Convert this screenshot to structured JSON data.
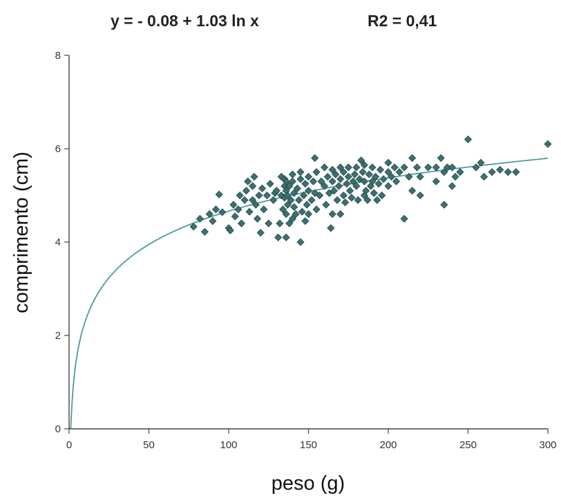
{
  "chart_data": {
    "type": "scatter",
    "title": "y = - 0.08 + 1.03 ln x",
    "subtitle": "R2 = 0,41",
    "xlabel": "peso (g)",
    "ylabel": "comprimento (cm)",
    "xlim": [
      0,
      300
    ],
    "ylim": [
      0,
      8
    ],
    "xticks": [
      "0",
      "50",
      "100",
      "150",
      "200",
      "250",
      "300"
    ],
    "yticks": [
      "0",
      "2",
      "4",
      "6",
      "8"
    ],
    "grid": false,
    "colors": {
      "points": "#3d7070",
      "point_stroke": "#1f4646",
      "curve": "#4e9a9a",
      "axis": "#444444"
    },
    "fit": {
      "a": -0.08,
      "b": 1.03,
      "model": "ln"
    },
    "points": [
      [
        78,
        4.33
      ],
      [
        82,
        4.5
      ],
      [
        85,
        4.22
      ],
      [
        88,
        4.6
      ],
      [
        90,
        4.45
      ],
      [
        92,
        4.7
      ],
      [
        94,
        5.02
      ],
      [
        96,
        4.64
      ],
      [
        100,
        4.3
      ],
      [
        101,
        4.25
      ],
      [
        103,
        4.8
      ],
      [
        104,
        4.55
      ],
      [
        106,
        4.7
      ],
      [
        107,
        5.0
      ],
      [
        108,
        4.4
      ],
      [
        110,
        4.9
      ],
      [
        111,
        5.1
      ],
      [
        112,
        5.3
      ],
      [
        113,
        4.65
      ],
      [
        115,
        5.2
      ],
      [
        115,
        4.9
      ],
      [
        116,
        5.4
      ],
      [
        117,
        4.8
      ],
      [
        118,
        4.5
      ],
      [
        119,
        5.0
      ],
      [
        120,
        4.2
      ],
      [
        121,
        5.15
      ],
      [
        122,
        4.7
      ],
      [
        124,
        5.0
      ],
      [
        125,
        4.4
      ],
      [
        126,
        5.25
      ],
      [
        128,
        4.9
      ],
      [
        129,
        5.05
      ],
      [
        130,
        5.1
      ],
      [
        131,
        4.1
      ],
      [
        132,
        4.4
      ],
      [
        133,
        5.4
      ],
      [
        133,
        5.0
      ],
      [
        134,
        4.7
      ],
      [
        135,
        4.95
      ],
      [
        135,
        5.2
      ],
      [
        135,
        5.35
      ],
      [
        136,
        4.1
      ],
      [
        136,
        4.6
      ],
      [
        136,
        5.1
      ],
      [
        136,
        5.3
      ],
      [
        137,
        4.8
      ],
      [
        137,
        5.0
      ],
      [
        138,
        4.4
      ],
      [
        138,
        5.2
      ],
      [
        139,
        4.9
      ],
      [
        140,
        4.5
      ],
      [
        140,
        5.3
      ],
      [
        140,
        5.45
      ],
      [
        141,
        4.75
      ],
      [
        141,
        5.05
      ],
      [
        142,
        4.6
      ],
      [
        143,
        5.15
      ],
      [
        144,
        4.9
      ],
      [
        145,
        4.0
      ],
      [
        145,
        5.35
      ],
      [
        145,
        5.5
      ],
      [
        146,
        4.65
      ],
      [
        147,
        5.0
      ],
      [
        148,
        4.45
      ],
      [
        148,
        5.25
      ],
      [
        149,
        4.8
      ],
      [
        150,
        4.6
      ],
      [
        150,
        5.1
      ],
      [
        150,
        5.4
      ],
      [
        152,
        4.9
      ],
      [
        153,
        5.3
      ],
      [
        154,
        5.8
      ],
      [
        154,
        5.05
      ],
      [
        155,
        4.7
      ],
      [
        155,
        5.5
      ],
      [
        157,
        5.0
      ],
      [
        158,
        5.3
      ],
      [
        160,
        5.2
      ],
      [
        160,
        5.6
      ],
      [
        161,
        4.8
      ],
      [
        162,
        5.4
      ],
      [
        163,
        5.05
      ],
      [
        164,
        4.3
      ],
      [
        165,
        4.6
      ],
      [
        165,
        5.3
      ],
      [
        165,
        5.55
      ],
      [
        166,
        5.1
      ],
      [
        167,
        5.45
      ],
      [
        168,
        4.9
      ],
      [
        169,
        5.2
      ],
      [
        170,
        5.6
      ],
      [
        170,
        4.6
      ],
      [
        170,
        5.35
      ],
      [
        172,
        5.0
      ],
      [
        172,
        5.5
      ],
      [
        173,
        4.85
      ],
      [
        174,
        5.25
      ],
      [
        175,
        5.6
      ],
      [
        175,
        5.4
      ],
      [
        176,
        5.1
      ],
      [
        177,
        4.95
      ],
      [
        178,
        5.3
      ],
      [
        179,
        5.45
      ],
      [
        180,
        5.6
      ],
      [
        180,
        5.2
      ],
      [
        181,
        4.9
      ],
      [
        182,
        5.35
      ],
      [
        183,
        5.75
      ],
      [
        184,
        5.5
      ],
      [
        185,
        5.0
      ],
      [
        185,
        5.65
      ],
      [
        185,
        5.3
      ],
      [
        186,
        5.1
      ],
      [
        187,
        4.9
      ],
      [
        188,
        5.45
      ],
      [
        189,
        5.2
      ],
      [
        190,
        5.6
      ],
      [
        190,
        5.3
      ],
      [
        191,
        5.05
      ],
      [
        192,
        5.4
      ],
      [
        193,
        4.9
      ],
      [
        194,
        5.25
      ],
      [
        195,
        5.55
      ],
      [
        196,
        5.0
      ],
      [
        197,
        5.35
      ],
      [
        200,
        5.5
      ],
      [
        200,
        5.7
      ],
      [
        200,
        5.2
      ],
      [
        202,
        5.4
      ],
      [
        204,
        5.6
      ],
      [
        205,
        5.3
      ],
      [
        207,
        5.5
      ],
      [
        210,
        4.5
      ],
      [
        210,
        5.6
      ],
      [
        213,
        5.4
      ],
      [
        215,
        5.8
      ],
      [
        215,
        5.1
      ],
      [
        218,
        5.6
      ],
      [
        220,
        5.0
      ],
      [
        220,
        5.4
      ],
      [
        225,
        5.6
      ],
      [
        230,
        5.3
      ],
      [
        230,
        5.6
      ],
      [
        233,
        5.8
      ],
      [
        235,
        4.8
      ],
      [
        235,
        5.5
      ],
      [
        237,
        5.6
      ],
      [
        240,
        5.6
      ],
      [
        240,
        5.2
      ],
      [
        242,
        5.4
      ],
      [
        245,
        5.5
      ],
      [
        250,
        6.2
      ],
      [
        255,
        5.6
      ],
      [
        258,
        5.7
      ],
      [
        260,
        5.4
      ],
      [
        265,
        5.5
      ],
      [
        270,
        5.55
      ],
      [
        275,
        5.5
      ],
      [
        280,
        5.5
      ],
      [
        300,
        6.1
      ]
    ]
  }
}
